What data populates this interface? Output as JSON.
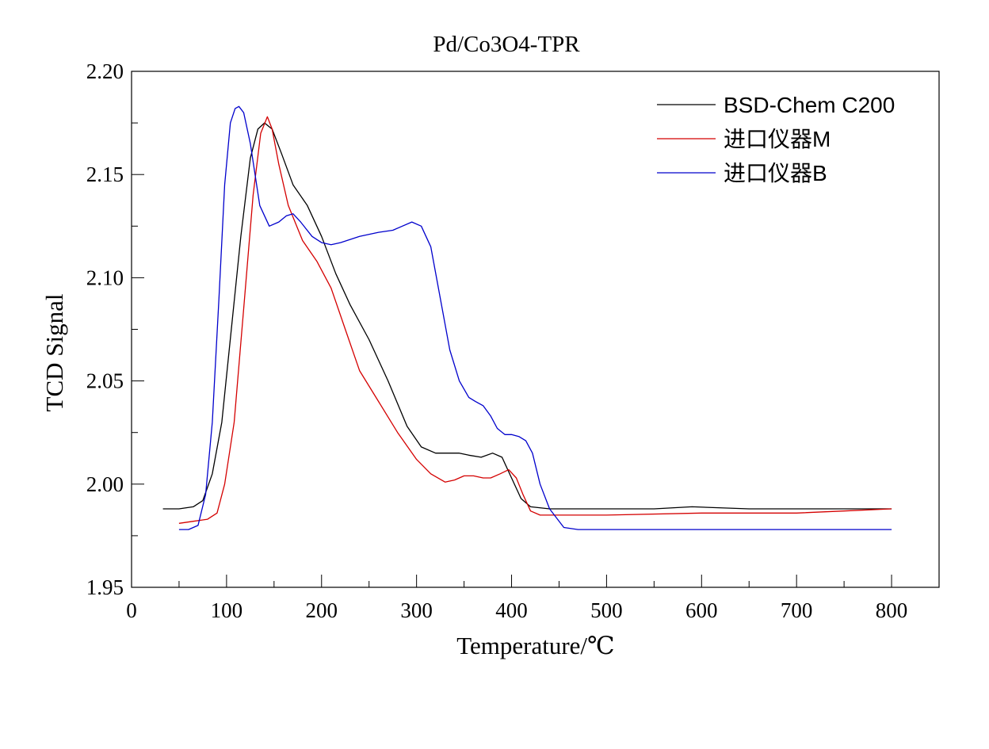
{
  "chart_data": {
    "type": "line",
    "title": "Pd/Co3O4-TPR",
    "xlabel": "Temperature/℃",
    "ylabel": "TCD Signal",
    "xlim": [
      0,
      850
    ],
    "ylim": [
      1.95,
      2.2
    ],
    "xticks": [
      0,
      100,
      200,
      300,
      400,
      500,
      600,
      700,
      800
    ],
    "xtick_labels": [
      "0",
      "100",
      "200",
      "300",
      "400",
      "500",
      "600",
      "700",
      "800"
    ],
    "yticks": [
      1.95,
      2.0,
      2.05,
      2.1,
      2.15,
      2.2
    ],
    "ytick_labels": [
      "1.95",
      "2.00",
      "2.05",
      "2.10",
      "2.15",
      "2.20"
    ],
    "grid": false,
    "legend_position": "top-right",
    "series": [
      {
        "name": "BSD-Chem C200",
        "color": "#000000",
        "x": [
          33,
          50,
          65,
          75,
          85,
          95,
          105,
          115,
          125,
          133,
          140,
          148,
          158,
          170,
          185,
          200,
          215,
          230,
          250,
          270,
          290,
          305,
          320,
          330,
          345,
          355,
          368,
          380,
          390,
          400,
          410,
          420,
          440,
          480,
          550,
          590,
          650,
          750,
          800
        ],
        "y": [
          1.988,
          1.988,
          1.989,
          1.992,
          2.005,
          2.03,
          2.075,
          2.12,
          2.158,
          2.172,
          2.175,
          2.172,
          2.16,
          2.145,
          2.135,
          2.12,
          2.102,
          2.087,
          2.07,
          2.05,
          2.028,
          2.018,
          2.015,
          2.015,
          2.015,
          2.014,
          2.013,
          2.015,
          2.013,
          2.003,
          1.993,
          1.989,
          1.988,
          1.988,
          1.988,
          1.989,
          1.988,
          1.988,
          1.988
        ]
      },
      {
        "name": "进口仪器M",
        "color": "#d40000",
        "x": [
          50,
          65,
          80,
          90,
          98,
          108,
          118,
          128,
          136,
          143,
          148,
          155,
          165,
          180,
          195,
          210,
          225,
          240,
          260,
          280,
          300,
          315,
          330,
          340,
          350,
          360,
          370,
          378,
          388,
          397,
          405,
          412,
          420,
          430,
          450,
          500,
          600,
          700,
          750,
          800
        ],
        "y": [
          1.981,
          1.982,
          1.983,
          1.986,
          2.0,
          2.03,
          2.085,
          2.14,
          2.17,
          2.178,
          2.172,
          2.155,
          2.135,
          2.118,
          2.108,
          2.095,
          2.075,
          2.055,
          2.04,
          2.025,
          2.012,
          2.005,
          2.001,
          2.002,
          2.004,
          2.004,
          2.003,
          2.003,
          2.005,
          2.007,
          2.003,
          1.995,
          1.987,
          1.985,
          1.985,
          1.985,
          1.986,
          1.986,
          1.987,
          1.988
        ]
      },
      {
        "name": "进口仪器B",
        "color": "#0000cc",
        "x": [
          50,
          60,
          70,
          78,
          85,
          92,
          98,
          104,
          109,
          113,
          118,
          125,
          135,
          145,
          155,
          163,
          170,
          178,
          190,
          200,
          210,
          220,
          240,
          260,
          275,
          285,
          295,
          305,
          315,
          325,
          335,
          345,
          355,
          362,
          370,
          378,
          385,
          393,
          400,
          408,
          415,
          422,
          430,
          440,
          455,
          470,
          500,
          600,
          700,
          800
        ],
        "y": [
          1.978,
          1.978,
          1.98,
          1.995,
          2.03,
          2.09,
          2.145,
          2.175,
          2.182,
          2.183,
          2.18,
          2.165,
          2.135,
          2.125,
          2.127,
          2.13,
          2.131,
          2.127,
          2.12,
          2.117,
          2.116,
          2.117,
          2.12,
          2.122,
          2.123,
          2.125,
          2.127,
          2.125,
          2.115,
          2.09,
          2.065,
          2.05,
          2.042,
          2.04,
          2.038,
          2.033,
          2.027,
          2.024,
          2.024,
          2.023,
          2.021,
          2.015,
          2.0,
          1.988,
          1.979,
          1.978,
          1.978,
          1.978,
          1.978,
          1.978
        ]
      }
    ]
  }
}
